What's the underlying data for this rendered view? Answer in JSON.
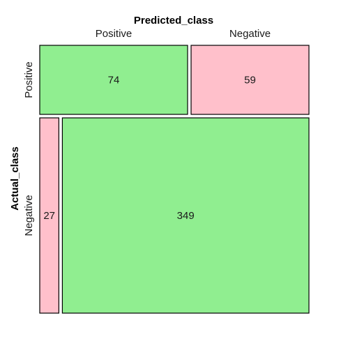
{
  "chart_data": {
    "type": "mosaic",
    "x_variable": "Predicted_class",
    "y_variable": "Actual_class",
    "column_labels": [
      "Positive",
      "Negative"
    ],
    "row_labels": [
      "Positive",
      "Negative"
    ],
    "cells": [
      {
        "actual": "Positive",
        "predicted": "Positive",
        "count": 74,
        "color": "#90ee90"
      },
      {
        "actual": "Positive",
        "predicted": "Negative",
        "count": 59,
        "color": "#ffc0cb"
      },
      {
        "actual": "Negative",
        "predicted": "Positive",
        "count": 27,
        "color": "#ffc0cb"
      },
      {
        "actual": "Negative",
        "predicted": "Negative",
        "count": 349,
        "color": "#90ee90"
      }
    ]
  }
}
